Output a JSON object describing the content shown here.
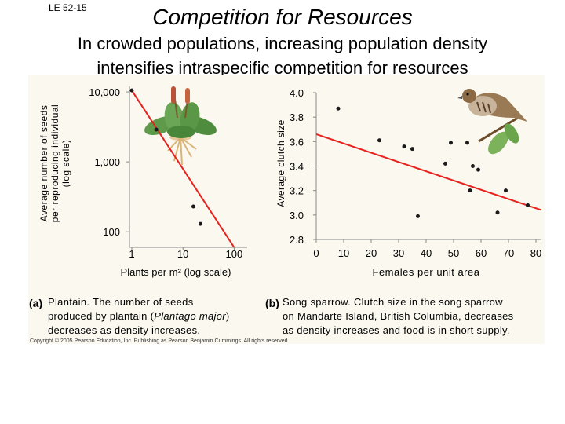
{
  "slide": {
    "id_label": "LE 52-15",
    "title": "Competition for Resources",
    "subtitle_line1": "In crowded populations, increasing population density",
    "subtitle_line2": "intensifies intraspecific competition for resources"
  },
  "colors": {
    "fit_line": "#e8211c",
    "point": "#1a1a1a",
    "panel_bg": "#fbf8f0",
    "axis": "#888888"
  },
  "illustrations": {
    "plant": "plantain-plant-icon",
    "bird": "song-sparrow-icon"
  },
  "chart_data": [
    {
      "type": "scatter",
      "panel": "(a)",
      "xlabel": "Plants per m² (log scale)",
      "ylabel_line1": "Average number of seeds",
      "ylabel_line2": "per reproducing individual",
      "ylabel_line3": "(log scale)",
      "x_scale": "log",
      "y_scale": "log",
      "xlim": [
        0.9,
        180
      ],
      "ylim": [
        60,
        12000
      ],
      "x_ticks": [
        1,
        10,
        100
      ],
      "x_tick_labels": [
        "1",
        "10",
        "100"
      ],
      "y_ticks": [
        100,
        1000,
        10000
      ],
      "y_tick_labels": [
        "100",
        "1,000",
        "10,000"
      ],
      "points": [
        {
          "x": 1,
          "y": 10500
        },
        {
          "x": 3,
          "y": 2900
        },
        {
          "x": 16,
          "y": 230
        },
        {
          "x": 22,
          "y": 130
        }
      ],
      "fit_line": [
        {
          "x": 1,
          "y": 10500
        },
        {
          "x": 100,
          "y": 60
        }
      ],
      "caption_label": "(a)",
      "caption_line1": "Plantain. The number of seeds",
      "caption_line2_before": "produced by plantain (",
      "caption_line2_species": "Plantago major",
      "caption_line2_after": ")",
      "caption_line3": "decreases as density increases."
    },
    {
      "type": "scatter",
      "panel": "(b)",
      "xlabel": "Females per unit area",
      "ylabel": "Average clutch size",
      "xlim": [
        0,
        82
      ],
      "ylim": [
        2.8,
        4.0
      ],
      "x_ticks": [
        0,
        10,
        20,
        30,
        40,
        50,
        60,
        70,
        80
      ],
      "x_tick_labels": [
        "0",
        "10",
        "20",
        "30",
        "40",
        "50",
        "60",
        "70",
        "80"
      ],
      "y_ticks": [
        2.8,
        3.0,
        3.2,
        3.4,
        3.6,
        3.8,
        4.0
      ],
      "y_tick_labels": [
        "2.8",
        "3.0",
        "3.2",
        "3.4",
        "3.6",
        "3.8",
        "4.0"
      ],
      "points": [
        {
          "x": 8,
          "y": 3.87
        },
        {
          "x": 23,
          "y": 3.61
        },
        {
          "x": 32,
          "y": 3.56
        },
        {
          "x": 35,
          "y": 3.54
        },
        {
          "x": 37,
          "y": 2.99
        },
        {
          "x": 47,
          "y": 3.42
        },
        {
          "x": 49,
          "y": 3.59
        },
        {
          "x": 55,
          "y": 3.59
        },
        {
          "x": 56,
          "y": 3.2
        },
        {
          "x": 57,
          "y": 3.4
        },
        {
          "x": 59,
          "y": 3.37
        },
        {
          "x": 66,
          "y": 3.02
        },
        {
          "x": 69,
          "y": 3.2
        },
        {
          "x": 77,
          "y": 3.08
        }
      ],
      "fit_line": [
        {
          "x": 0,
          "y": 3.66
        },
        {
          "x": 82,
          "y": 3.04
        }
      ],
      "caption_label": "(b)",
      "caption_line1": "Song sparrow. Clutch size in the song sparrow",
      "caption_line2": "on Mandarte Island, British Columbia, decreases",
      "caption_line3": "as density increases and food is in short supply."
    }
  ],
  "copyright": "Copyright © 2005 Pearson Education, Inc. Publishing as Pearson Benjamin Cummings. All rights reserved."
}
